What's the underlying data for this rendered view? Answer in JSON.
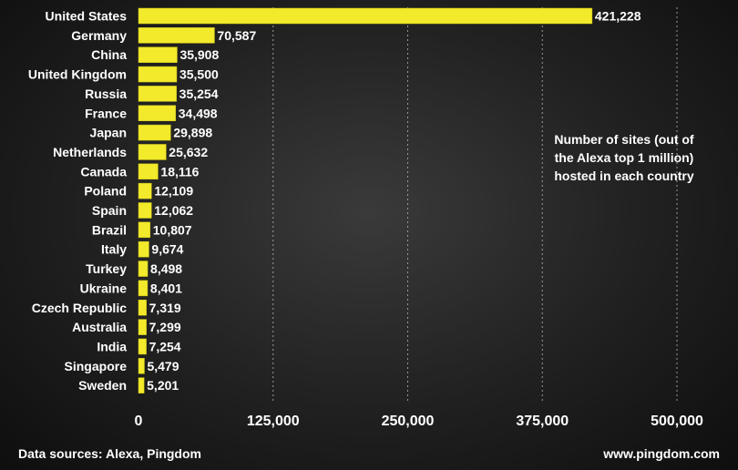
{
  "chart_data": {
    "type": "bar",
    "orientation": "horizontal",
    "categories": [
      "United States",
      "Germany",
      "China",
      "United Kingdom",
      "Russia",
      "France",
      "Japan",
      "Netherlands",
      "Canada",
      "Poland",
      "Spain",
      "Brazil",
      "Italy",
      "Turkey",
      "Ukraine",
      "Czech Republic",
      "Australia",
      "India",
      "Singapore",
      "Sweden"
    ],
    "values": [
      421228,
      70587,
      35908,
      35500,
      35254,
      34498,
      29898,
      25632,
      18116,
      12109,
      12062,
      10807,
      9674,
      8498,
      8401,
      7319,
      7299,
      7254,
      5479,
      5201
    ],
    "value_labels": [
      "421,228",
      "70,587",
      "35,908",
      "35,500",
      "35,254",
      "34,498",
      "29,898",
      "25,632",
      "18,116",
      "12,109",
      "12,062",
      "10,807",
      "9,674",
      "8,498",
      "8,401",
      "7,319",
      "7,299",
      "7,254",
      "5,479",
      "5,201"
    ],
    "xlim": [
      0,
      500000
    ],
    "x_ticks": [
      0,
      125000,
      250000,
      375000,
      500000
    ],
    "x_tick_labels": [
      "0",
      "125,000",
      "250,000",
      "375,000",
      "500,000"
    ],
    "grid": "vertical dashed",
    "bar_color": "#f2ea2a",
    "annotation": "Number of sites (out of the Alexa top 1 million) hosted in each country"
  },
  "footer": {
    "source": "Data sources: Alexa, Pingdom",
    "site": "www.pingdom.com"
  }
}
